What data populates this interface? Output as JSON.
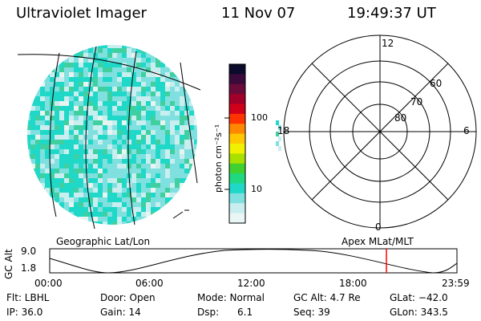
{
  "header": {
    "instrument": "Ultraviolet Imager",
    "date": "11 Nov 07",
    "time": "19:49:37 UT"
  },
  "colorbar": {
    "unit_label": "photon cm⁻²s⁻¹",
    "ticks": [
      "100",
      "10"
    ],
    "colors": [
      "#0b0b2b",
      "#3a0b3a",
      "#6a0b3a",
      "#a0002a",
      "#d0001a",
      "#ff3300",
      "#ff8800",
      "#ffc800",
      "#f0f000",
      "#a8e000",
      "#40d030",
      "#20d880",
      "#20d8c8",
      "#80e0e0",
      "#c8eef0",
      "#eaf6f6"
    ]
  },
  "polar_plot": {
    "latitude_labels": [
      "60",
      "70",
      "80"
    ],
    "mlt_labels": [
      "12",
      "18",
      "6",
      "0"
    ]
  },
  "projection_labels": {
    "left": "Geographic Lat/Lon",
    "right": "Apex MLat/MLT"
  },
  "altitude_plot": {
    "y_label": "GC Alt",
    "y_ticks": [
      "9.0",
      "1.8"
    ],
    "x_ticks": [
      "00:00",
      "06:00",
      "12:00",
      "18:00",
      "23:59"
    ],
    "marker_color": "#ff0000"
  },
  "status": {
    "flt": "Flt: LBHL",
    "ip": "IP: 36.0",
    "door": "Door: Open",
    "gain": "Gain: 14",
    "mode": "Mode: Normal",
    "dsp": "Dsp:      6.1",
    "gc_alt": "GC Alt: 4.7 Re",
    "seq": "Seq: 39",
    "glat": "GLat: −42.0",
    "glon": "GLon: 343.5"
  },
  "image_colors": {
    "dominant": [
      "#20d8c8",
      "#40d0a0",
      "#80e0e0",
      "#c8eef0",
      "#e8f4f0"
    ]
  }
}
